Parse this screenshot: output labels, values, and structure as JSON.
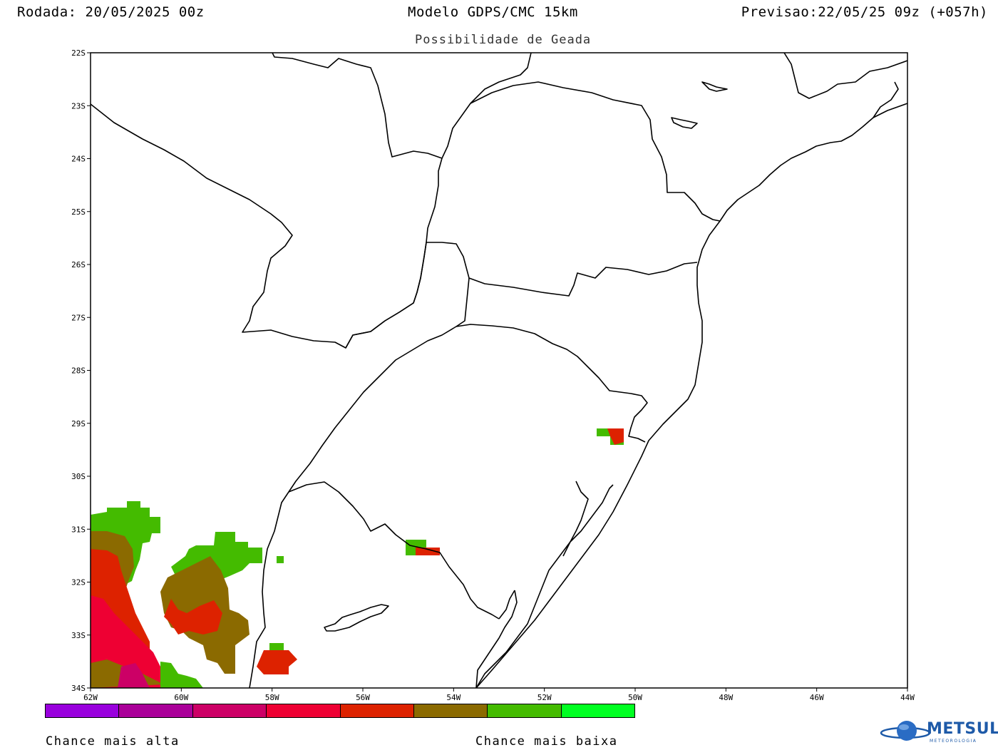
{
  "header": {
    "run": "Rodada: 20/05/2025 00z",
    "model": "Modelo GDPS/CMC 15km",
    "forecast": "Previsao:22/05/25 09z (+057h)",
    "subtitle": "Possibilidade de Geada"
  },
  "axes": {
    "lat_labels": [
      "22S",
      "23S",
      "24S",
      "25S",
      "26S",
      "27S",
      "28S",
      "29S",
      "30S",
      "31S",
      "32S",
      "33S",
      "34S"
    ],
    "lon_labels": [
      "62W",
      "60W",
      "58W",
      "56W",
      "54W",
      "52W",
      "50W",
      "48W",
      "46W",
      "44W"
    ],
    "lat_range": [
      -34,
      -22
    ],
    "lon_range": [
      -62,
      -44
    ]
  },
  "legend": {
    "colors": [
      "#9900dd",
      "#aa0099",
      "#cc0066",
      "#ee0033",
      "#dd2200",
      "#8b6a00",
      "#44bb00",
      "#00ff22"
    ],
    "high_label": "Chance mais alta",
    "low_label": "Chance mais baixa"
  },
  "logo": {
    "text": "METSUL",
    "subtext": "METEOROLOGIA",
    "icon": "globe-icon"
  },
  "colors": {
    "frost_high": "#ee0033",
    "frost_red": "#dd2200",
    "frost_brown": "#8b6a00",
    "frost_green": "#44bb00"
  }
}
